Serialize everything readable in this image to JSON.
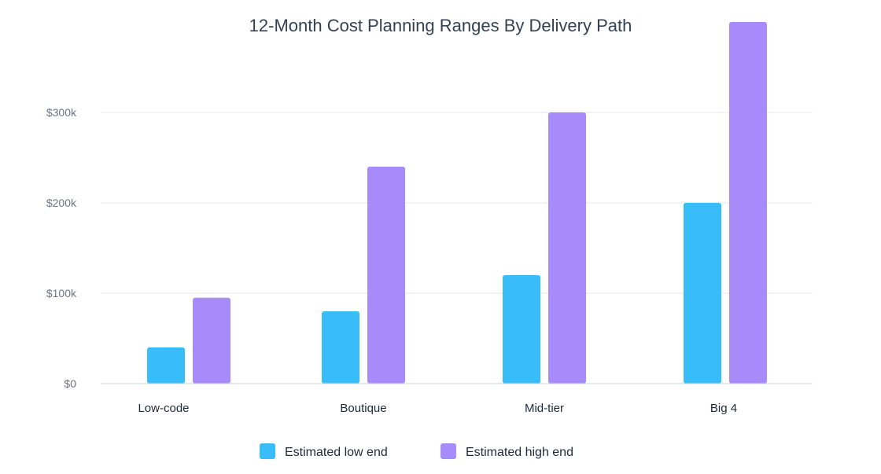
{
  "chart_data": {
    "type": "bar",
    "title": "12-Month Cost Planning Ranges By Delivery Path",
    "xlabel": "",
    "ylabel": "",
    "categories": [
      "Low-code",
      "Boutique",
      "Mid-tier",
      "Big 4"
    ],
    "series": [
      {
        "name": "Estimated low end",
        "values": [
          40000,
          80000,
          120000,
          200000
        ],
        "color": "#38bdf8"
      },
      {
        "name": "Estimated high end",
        "values": [
          95000,
          240000,
          300000,
          400000
        ],
        "color": "#a78bfa"
      }
    ],
    "ylim": [
      0,
      400000
    ],
    "y_ticks": [
      {
        "value": 0,
        "label": "$0"
      },
      {
        "value": 100000,
        "label": "$100k"
      },
      {
        "value": 200000,
        "label": "$200k"
      },
      {
        "value": 300000,
        "label": "$300k"
      }
    ],
    "grid": true,
    "legend_position": "bottom-center",
    "colors": {
      "grid": "#e5e7eb",
      "axis": "#cbd5e1"
    }
  }
}
